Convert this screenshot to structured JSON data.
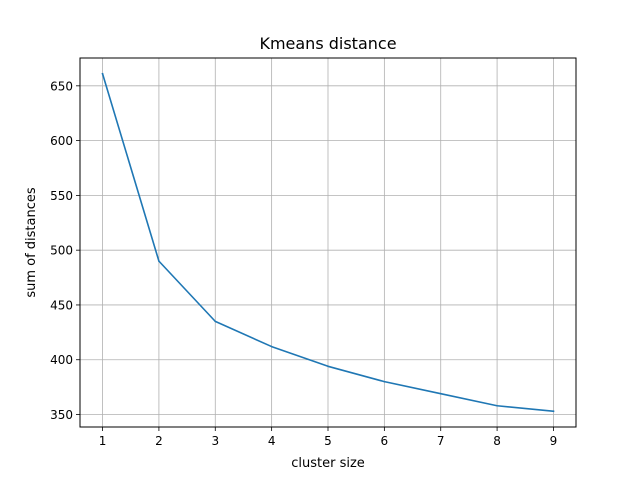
{
  "chart_data": {
    "type": "line",
    "title": "Kmeans distance",
    "xlabel": "cluster size",
    "ylabel": "sum of distances",
    "x": [
      1,
      2,
      3,
      4,
      5,
      6,
      7,
      8,
      9
    ],
    "series": [
      {
        "values": [
          661,
          490,
          435,
          412,
          394,
          380,
          369,
          358,
          353
        ]
      }
    ],
    "xlim": [
      0.6,
      9.4
    ],
    "ylim": [
      338.6,
      675.4
    ],
    "xticks": [
      1,
      2,
      3,
      4,
      5,
      6,
      7,
      8,
      9
    ],
    "yticks": [
      350,
      400,
      450,
      500,
      550,
      600,
      650
    ],
    "grid": true,
    "line_color": "#1f77b4",
    "grid_color": "#b0b0b0"
  }
}
